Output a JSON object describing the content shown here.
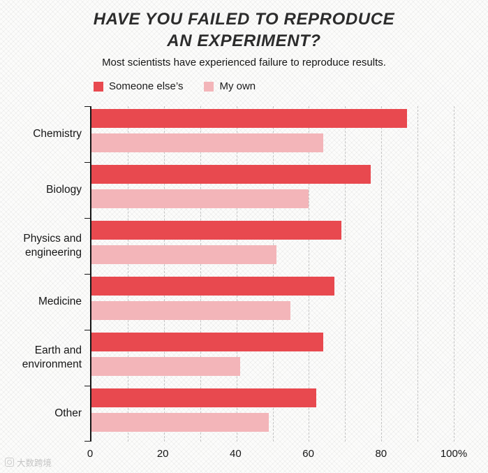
{
  "watermark": {
    "text": "大数跨境",
    "icon": "logo-icon"
  },
  "chart_data": {
    "type": "bar",
    "orientation": "horizontal",
    "title": "HAVE YOU FAILED TO REPRODUCE AN EXPERIMENT?",
    "title_lines": [
      "HAVE YOU FAILED TO REPRODUCE",
      "AN EXPERIMENT?"
    ],
    "subtitle": "Most scientists have experienced failure to reproduce results.",
    "categories": [
      "Chemistry",
      "Biology",
      "Physics and engineering",
      "Medicine",
      "Earth and environment",
      "Other"
    ],
    "series": [
      {
        "name": "Someone else’s",
        "color": "#e8494f",
        "values": [
          87,
          77,
          69,
          67,
          64,
          62
        ]
      },
      {
        "name": "My own",
        "color": "#f3b5b9",
        "values": [
          64,
          60,
          51,
          55,
          41,
          49
        ]
      }
    ],
    "xlim": [
      0,
      100
    ],
    "gridline_step": 10,
    "grid": "dashed-vertical",
    "xticks": [
      0,
      20,
      40,
      60,
      80,
      100
    ],
    "xtick_labels": [
      "0",
      "20",
      "40",
      "60",
      "80",
      "100%"
    ],
    "legend_position": "top-left"
  }
}
